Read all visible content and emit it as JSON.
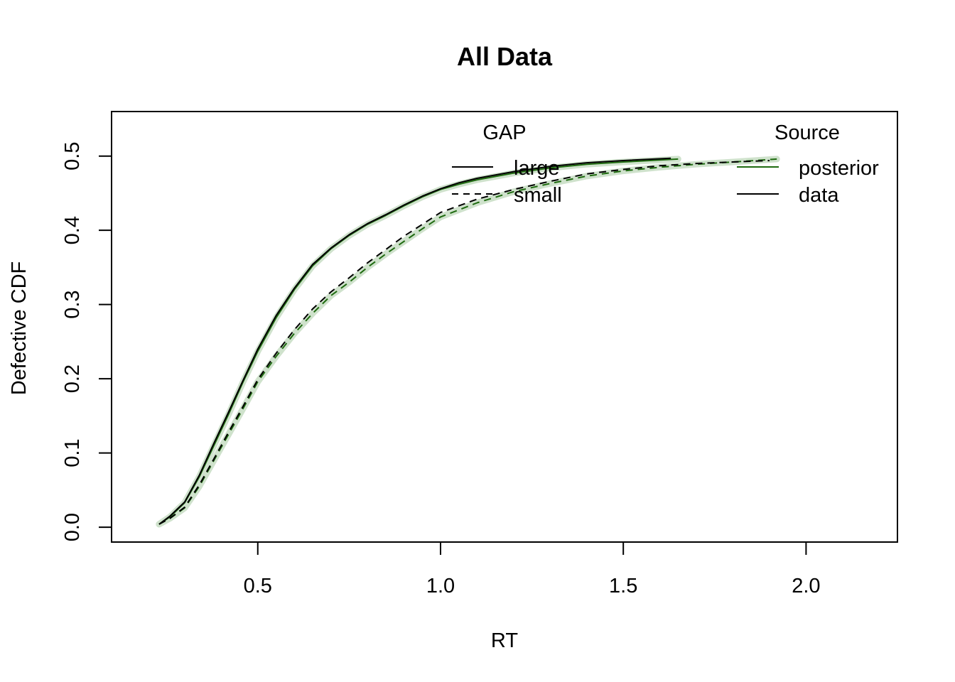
{
  "chart_data": {
    "type": "line",
    "title": "All Data",
    "xlabel": "RT",
    "ylabel": "Defective CDF",
    "xlim": [
      0.1,
      2.25
    ],
    "ylim": [
      -0.02,
      0.56
    ],
    "x_ticks": [
      0.5,
      1.0,
      1.5,
      2.0
    ],
    "x_tick_labels": [
      "0.5",
      "1.0",
      "1.5",
      "2.0"
    ],
    "y_ticks": [
      0.0,
      0.1,
      0.2,
      0.3,
      0.4,
      0.5
    ],
    "y_tick_labels": [
      "0.0",
      "0.1",
      "0.2",
      "0.3",
      "0.4",
      "0.5"
    ],
    "grid": false,
    "colors": {
      "posterior": "#1f6b10",
      "posterior_band": "#cfe2cc",
      "data": "#000000"
    },
    "legend_gap": {
      "title": "GAP",
      "position": "top-center",
      "items": [
        {
          "label": "large",
          "linestyle": "solid"
        },
        {
          "label": "small",
          "linestyle": "dashed"
        }
      ]
    },
    "legend_source": {
      "title": "Source",
      "position": "top-right",
      "items": [
        {
          "label": "posterior",
          "color": "#1f6b10"
        },
        {
          "label": "data",
          "color": "#000000"
        }
      ]
    },
    "series": [
      {
        "source": "posterior",
        "gap": "large",
        "linestyle": "solid",
        "x": [
          0.23,
          0.26,
          0.3,
          0.34,
          0.38,
          0.42,
          0.46,
          0.5,
          0.55,
          0.6,
          0.65,
          0.7,
          0.75,
          0.8,
          0.85,
          0.9,
          0.95,
          1.0,
          1.05,
          1.1,
          1.2,
          1.3,
          1.4,
          1.5,
          1.65
        ],
        "y": [
          0.004,
          0.014,
          0.033,
          0.068,
          0.11,
          0.152,
          0.196,
          0.237,
          0.282,
          0.32,
          0.352,
          0.375,
          0.393,
          0.408,
          0.42,
          0.433,
          0.445,
          0.455,
          0.462,
          0.468,
          0.477,
          0.484,
          0.489,
          0.492,
          0.496
        ]
      },
      {
        "source": "data",
        "gap": "large",
        "linestyle": "solid",
        "x": [
          0.23,
          0.26,
          0.3,
          0.34,
          0.38,
          0.42,
          0.46,
          0.5,
          0.55,
          0.6,
          0.65,
          0.7,
          0.75,
          0.8,
          0.85,
          0.9,
          0.95,
          1.0,
          1.05,
          1.1,
          1.2,
          1.3,
          1.4,
          1.5,
          1.63
        ],
        "y": [
          0.004,
          0.015,
          0.034,
          0.07,
          0.113,
          0.155,
          0.198,
          0.24,
          0.285,
          0.322,
          0.354,
          0.376,
          0.394,
          0.409,
          0.421,
          0.434,
          0.446,
          0.456,
          0.464,
          0.47,
          0.479,
          0.486,
          0.491,
          0.494,
          0.497
        ]
      },
      {
        "source": "posterior",
        "gap": "small",
        "linestyle": "dashed",
        "x": [
          0.23,
          0.26,
          0.3,
          0.34,
          0.38,
          0.42,
          0.46,
          0.5,
          0.55,
          0.6,
          0.65,
          0.7,
          0.75,
          0.8,
          0.85,
          0.9,
          0.95,
          1.0,
          1.1,
          1.2,
          1.3,
          1.4,
          1.5,
          1.6,
          1.7,
          1.8,
          1.92
        ],
        "y": [
          0.004,
          0.012,
          0.026,
          0.055,
          0.09,
          0.125,
          0.16,
          0.196,
          0.23,
          0.261,
          0.288,
          0.312,
          0.33,
          0.35,
          0.368,
          0.385,
          0.402,
          0.418,
          0.437,
          0.452,
          0.463,
          0.473,
          0.48,
          0.485,
          0.489,
          0.492,
          0.496
        ]
      },
      {
        "source": "data",
        "gap": "small",
        "linestyle": "dashed",
        "x": [
          0.23,
          0.26,
          0.3,
          0.34,
          0.38,
          0.42,
          0.46,
          0.5,
          0.55,
          0.6,
          0.65,
          0.7,
          0.75,
          0.8,
          0.85,
          0.9,
          0.95,
          1.0,
          1.1,
          1.2,
          1.3,
          1.4,
          1.5,
          1.6,
          1.7,
          1.8,
          1.9
        ],
        "y": [
          0.004,
          0.012,
          0.027,
          0.057,
          0.092,
          0.128,
          0.163,
          0.199,
          0.234,
          0.266,
          0.294,
          0.317,
          0.336,
          0.356,
          0.374,
          0.392,
          0.408,
          0.424,
          0.442,
          0.455,
          0.466,
          0.476,
          0.482,
          0.487,
          0.49,
          0.492,
          0.494
        ]
      }
    ]
  }
}
